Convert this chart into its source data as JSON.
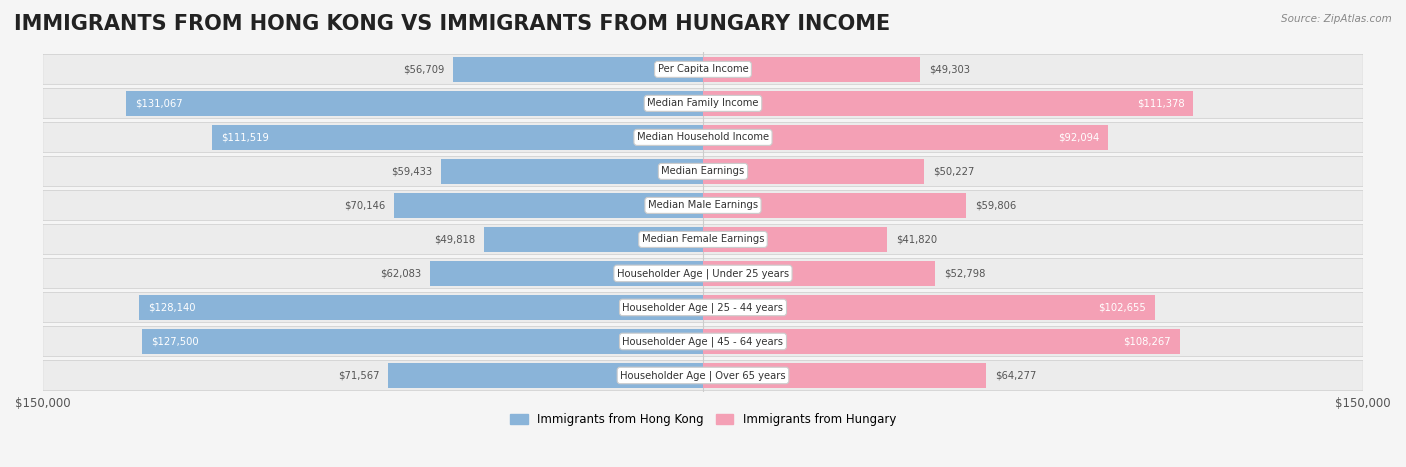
{
  "title": "IMMIGRANTS FROM HONG KONG VS IMMIGRANTS FROM HUNGARY INCOME",
  "source": "Source: ZipAtlas.com",
  "categories": [
    "Per Capita Income",
    "Median Family Income",
    "Median Household Income",
    "Median Earnings",
    "Median Male Earnings",
    "Median Female Earnings",
    "Householder Age | Under 25 years",
    "Householder Age | 25 - 44 years",
    "Householder Age | 45 - 64 years",
    "Householder Age | Over 65 years"
  ],
  "hong_kong_values": [
    56709,
    131067,
    111519,
    59433,
    70146,
    49818,
    62083,
    128140,
    127500,
    71567
  ],
  "hungary_values": [
    49303,
    111378,
    92094,
    50227,
    59806,
    41820,
    52798,
    102655,
    108267,
    64277
  ],
  "hong_kong_color": "#8ab4d9",
  "hungary_color": "#f4a0b5",
  "hong_kong_label": "Immigrants from Hong Kong",
  "hungary_label": "Immigrants from Hungary",
  "max_value": 150000,
  "background_color": "#f5f5f5",
  "row_bg_color": "#ececec",
  "label_bg_color": "#ffffff",
  "title_fontsize": 15,
  "axis_label": "$150,000"
}
